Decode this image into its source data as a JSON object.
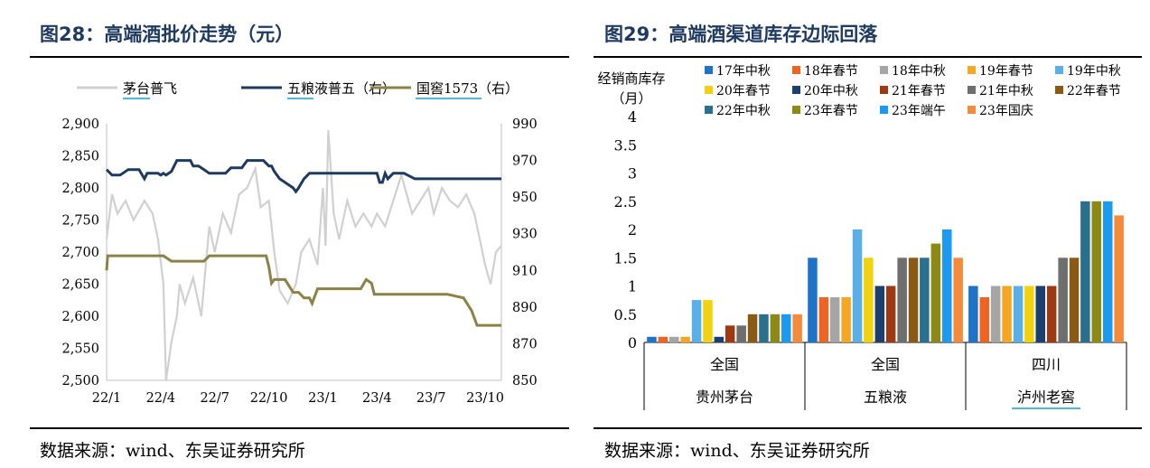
{
  "left_panel": {
    "title": "图28：高端酒批价走势（元）",
    "source": "数据来源：wind、东吴证券研究所"
  },
  "right_panel": {
    "title": "图29：高端酒渠道库存边际回落",
    "source": "数据来源：wind、东吴证券研究所"
  },
  "colors": {
    "title": "#1f3a5f",
    "moutai": "#d0d0d0",
    "wuliangye": "#1f3a5f",
    "guojiao": "#8c8248",
    "underline": "#1aa0c8"
  },
  "chart_data": [
    {
      "type": "line",
      "x_ticks": [
        "22/1",
        "22/4",
        "22/7",
        "22/10",
        "23/1",
        "23/4",
        "23/7",
        "23/10"
      ],
      "y_left": {
        "ylim": [
          2500,
          2900
        ],
        "ticks": [
          "2,900",
          "2,850",
          "2,800",
          "2,750",
          "2,700",
          "2,650",
          "2,600",
          "2,550",
          "2,500"
        ]
      },
      "y_right": {
        "ylim": [
          850,
          990
        ],
        "ticks": [
          "990",
          "970",
          "950",
          "930",
          "910",
          "890",
          "870",
          "850"
        ]
      },
      "series": [
        {
          "name": "茅台普飞",
          "axis": "left",
          "color": "#d0d0d0",
          "points": [
            [
              0,
              2720
            ],
            [
              0.1,
              2790
            ],
            [
              0.2,
              2760
            ],
            [
              0.35,
              2780
            ],
            [
              0.5,
              2750
            ],
            [
              0.7,
              2780
            ],
            [
              0.85,
              2760
            ],
            [
              0.95,
              2720
            ],
            [
              1.05,
              2650
            ],
            [
              1.1,
              2500
            ],
            [
              1.2,
              2560
            ],
            [
              1.3,
              2600
            ],
            [
              1.35,
              2650
            ],
            [
              1.45,
              2620
            ],
            [
              1.6,
              2660
            ],
            [
              1.75,
              2600
            ],
            [
              1.9,
              2740
            ],
            [
              2.0,
              2700
            ],
            [
              2.15,
              2760
            ],
            [
              2.3,
              2730
            ],
            [
              2.45,
              2790
            ],
            [
              2.6,
              2800
            ],
            [
              2.75,
              2830
            ],
            [
              2.85,
              2770
            ],
            [
              3.0,
              2780
            ],
            [
              3.1,
              2700
            ],
            [
              3.2,
              2640
            ],
            [
              3.35,
              2620
            ],
            [
              3.5,
              2650
            ],
            [
              3.6,
              2700
            ],
            [
              3.75,
              2720
            ],
            [
              3.9,
              2680
            ],
            [
              4.0,
              2800
            ],
            [
              4.05,
              2710
            ],
            [
              4.1,
              2890
            ],
            [
              4.2,
              2760
            ],
            [
              4.3,
              2720
            ],
            [
              4.45,
              2780
            ],
            [
              4.6,
              2740
            ],
            [
              4.75,
              2760
            ],
            [
              4.9,
              2740
            ],
            [
              5.0,
              2760
            ],
            [
              5.15,
              2740
            ],
            [
              5.3,
              2780
            ],
            [
              5.45,
              2820
            ],
            [
              5.55,
              2790
            ],
            [
              5.65,
              2760
            ],
            [
              5.8,
              2780
            ],
            [
              5.95,
              2800
            ],
            [
              6.05,
              2760
            ],
            [
              6.2,
              2800
            ],
            [
              6.35,
              2780
            ],
            [
              6.5,
              2770
            ],
            [
              6.65,
              2790
            ],
            [
              6.8,
              2760
            ],
            [
              6.9,
              2720
            ],
            [
              7.0,
              2680
            ],
            [
              7.1,
              2650
            ],
            [
              7.2,
              2700
            ],
            [
              7.3,
              2710
            ]
          ]
        },
        {
          "name": "五粮液普五（右）",
          "axis": "right",
          "color": "#1f3a5f",
          "points": [
            [
              0,
              965
            ],
            [
              0.1,
              962
            ],
            [
              0.25,
              962
            ],
            [
              0.4,
              965
            ],
            [
              0.6,
              965
            ],
            [
              0.7,
              960
            ],
            [
              0.75,
              963
            ],
            [
              0.95,
              963
            ],
            [
              1.0,
              962
            ],
            [
              1.05,
              963
            ],
            [
              1.1,
              962
            ],
            [
              1.2,
              964
            ],
            [
              1.25,
              967
            ],
            [
              1.3,
              970
            ],
            [
              1.55,
              970
            ],
            [
              1.6,
              967
            ],
            [
              1.7,
              967
            ],
            [
              1.8,
              965
            ],
            [
              1.9,
              963
            ],
            [
              2.0,
              963
            ],
            [
              2.2,
              963
            ],
            [
              2.3,
              966
            ],
            [
              2.5,
              966
            ],
            [
              2.6,
              970
            ],
            [
              2.9,
              970
            ],
            [
              3.0,
              967
            ],
            [
              3.05,
              967
            ],
            [
              3.1,
              964
            ],
            [
              3.2,
              960
            ],
            [
              3.3,
              958
            ],
            [
              3.45,
              955
            ],
            [
              3.5,
              953
            ],
            [
              3.55,
              955
            ],
            [
              3.65,
              960
            ],
            [
              3.75,
              963
            ],
            [
              3.9,
              963
            ],
            [
              4.15,
              963
            ],
            [
              4.35,
              963
            ],
            [
              4.6,
              963
            ],
            [
              4.85,
              963
            ],
            [
              5.0,
              963
            ],
            [
              5.05,
              958
            ],
            [
              5.1,
              958
            ],
            [
              5.15,
              963
            ],
            [
              5.2,
              960
            ],
            [
              5.3,
              963
            ],
            [
              5.5,
              963
            ],
            [
              5.7,
              960
            ],
            [
              5.9,
              960
            ],
            [
              6.2,
              960
            ],
            [
              6.6,
              960
            ],
            [
              7.0,
              960
            ],
            [
              7.3,
              960
            ]
          ]
        },
        {
          "name": "国窖1573（右）",
          "axis": "right",
          "color": "#8c8248",
          "points": [
            [
              0,
              910
            ],
            [
              0.02,
              918
            ],
            [
              0.3,
              918
            ],
            [
              0.6,
              918
            ],
            [
              0.9,
              918
            ],
            [
              1.05,
              918
            ],
            [
              1.2,
              915
            ],
            [
              1.5,
              915
            ],
            [
              1.8,
              915
            ],
            [
              1.9,
              918
            ],
            [
              2.1,
              918
            ],
            [
              2.4,
              918
            ],
            [
              2.7,
              918
            ],
            [
              2.95,
              918
            ],
            [
              3.0,
              912
            ],
            [
              3.05,
              903
            ],
            [
              3.1,
              905
            ],
            [
              3.3,
              905
            ],
            [
              3.45,
              898
            ],
            [
              3.55,
              898
            ],
            [
              3.65,
              895
            ],
            [
              3.75,
              895
            ],
            [
              3.8,
              892
            ],
            [
              3.9,
              900
            ],
            [
              4.1,
              900
            ],
            [
              4.3,
              900
            ],
            [
              4.5,
              900
            ],
            [
              4.7,
              900
            ],
            [
              4.8,
              905
            ],
            [
              4.9,
              903
            ],
            [
              4.95,
              897
            ],
            [
              5.2,
              897
            ],
            [
              5.5,
              897
            ],
            [
              5.8,
              897
            ],
            [
              6.0,
              897
            ],
            [
              6.3,
              897
            ],
            [
              6.6,
              895
            ],
            [
              6.75,
              888
            ],
            [
              6.85,
              880
            ],
            [
              7.0,
              880
            ],
            [
              7.3,
              880
            ]
          ]
        }
      ]
    },
    {
      "type": "bar",
      "ylabel": "经销商库存\n（月）",
      "ylim": [
        0,
        4
      ],
      "y_ticks": [
        "4",
        "3.5",
        "3",
        "2.5",
        "2",
        "1.5",
        "1",
        "0.5",
        "0"
      ],
      "groups": [
        {
          "region": "全国",
          "brand": "贵州茅台"
        },
        {
          "region": "全国",
          "brand": "五粮液"
        },
        {
          "region": "四川",
          "brand": "泸州老窖"
        }
      ],
      "series": [
        {
          "name": "17年中秋",
          "color": "#1e73c6",
          "values": [
            0.1,
            1.5,
            1.0
          ]
        },
        {
          "name": "18年春节",
          "color": "#f06422",
          "values": [
            0.1,
            0.8,
            0.8
          ]
        },
        {
          "name": "18年中秋",
          "color": "#a5a5a5",
          "values": [
            0.1,
            0.8,
            1.0
          ]
        },
        {
          "name": "19年春节",
          "color": "#f5a623",
          "values": [
            0.1,
            0.8,
            1.0
          ]
        },
        {
          "name": "19年中秋",
          "color": "#5ab0e6",
          "values": [
            0.75,
            2.0,
            1.0
          ]
        },
        {
          "name": "20年春节",
          "color": "#f2d10e",
          "values": [
            0.75,
            1.5,
            1.0
          ]
        },
        {
          "name": "20年中秋",
          "color": "#1b3f6e",
          "values": [
            0.1,
            1.0,
            1.0
          ]
        },
        {
          "name": "21年春节",
          "color": "#9e3a12",
          "values": [
            0.3,
            1.0,
            1.0
          ]
        },
        {
          "name": "21年中秋",
          "color": "#6e6e6e",
          "values": [
            0.3,
            1.5,
            1.5
          ]
        },
        {
          "name": "22年春节",
          "color": "#8a5a14",
          "values": [
            0.5,
            1.5,
            1.5
          ]
        },
        {
          "name": "22年中秋",
          "color": "#2a6f8c",
          "values": [
            0.5,
            1.5,
            2.5
          ]
        },
        {
          "name": "23年春节",
          "color": "#8c8a14",
          "values": [
            0.5,
            1.75,
            2.5
          ]
        },
        {
          "name": "23年端午",
          "color": "#1a9af0",
          "values": [
            0.5,
            2.0,
            2.5
          ]
        },
        {
          "name": "23年国庆",
          "color": "#f58a3c",
          "values": [
            0.5,
            1.5,
            2.25
          ]
        }
      ]
    }
  ]
}
